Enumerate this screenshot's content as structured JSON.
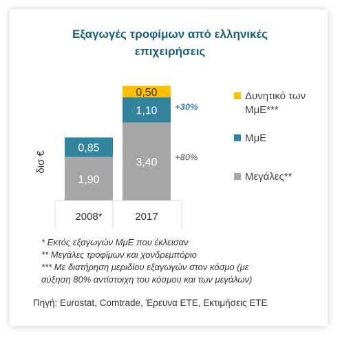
{
  "title_line1": "Εξαγωγές τροφίμων από ελληνικές",
  "title_line2": "επιχειρήσεις",
  "chart_data": {
    "type": "bar",
    "stacked": true,
    "categories": [
      "2008*",
      "2017"
    ],
    "ylabel": "δισ €",
    "value_labels_format": "comma_decimal_2",
    "series": [
      {
        "name": "Μεγάλες**",
        "color": "#a6a6a6",
        "values": [
          1.9,
          3.4
        ],
        "labels": [
          "1,90",
          "3,40"
        ]
      },
      {
        "name": "ΜμΕ",
        "color": "#31849b",
        "values": [
          0.85,
          1.1
        ],
        "labels": [
          "0,85",
          "1,10"
        ]
      },
      {
        "name": "Δυνητικό των ΜμΕ***",
        "color": "#ffc000",
        "values": [
          0,
          0.5
        ],
        "labels": [
          "",
          "0,50"
        ]
      }
    ],
    "annotations": [
      {
        "text": "+30%",
        "color": "#31849b",
        "series": "ΜμΕ"
      },
      {
        "text": "+80%",
        "color": "#7f7f7f",
        "series": "Μεγάλες**"
      }
    ]
  },
  "legend": {
    "potential_line1": "Δυνητικό των",
    "potential_line2": "ΜμΕ***",
    "sme": "ΜμΕ",
    "large": "Μεγάλες**"
  },
  "notes": [
    "* Εκτός εξαγωγών ΜμΕ που έκλεισαν",
    "** Μεγάλες τροφίμων και χονδρεμπόριο",
    "*** Με διατήρηση μεριδίου εξαγωγών στον κόσμο (με",
    "αύξηση 80% αντίστοιχη του κόσμου και των μεγάλων)"
  ],
  "source": "Πηγή: Eurostat, Comtrade, Έρευνα ΕΤΕ, Εκτιμήσεις ΕΤΕ"
}
